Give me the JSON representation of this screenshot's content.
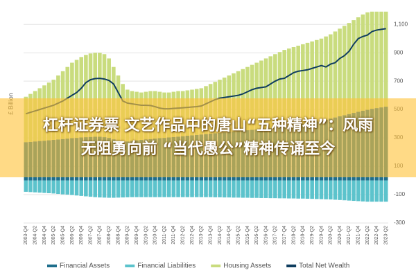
{
  "chart_data": {
    "type": "stacked_bar_line",
    "y_label": "£ Billion",
    "categories": [
      "2003-Q4",
      null,
      "2004-Q2",
      null,
      "2004-Q4",
      null,
      "2005-Q2",
      null,
      "2005-Q4",
      null,
      "2006-Q2",
      null,
      "2006-Q4",
      null,
      "2007-Q2",
      null,
      "2007-Q4",
      null,
      "2008-Q2",
      null,
      "2008-Q4",
      null,
      "2009-Q2",
      null,
      "2009-Q4",
      null,
      "2010-Q2",
      null,
      "2010-Q4",
      null,
      "2011-Q2",
      null,
      "2011-Q4",
      null,
      "2012-Q2",
      null,
      "2012-Q4",
      null,
      "2013-Q2",
      null,
      "2013-Q4",
      null,
      "2014-Q2",
      null,
      "2014-Q4",
      null,
      "2015-Q2",
      null,
      "2015-Q4",
      null,
      "2016-Q2",
      null,
      "2016-Q4",
      null,
      "2017-Q2",
      null,
      "2017-Q4",
      null,
      "2018-Q2",
      null,
      "2018-Q4",
      null,
      "2019-Q2",
      null,
      "2019-Q4",
      null,
      "2020-Q2",
      null,
      "2020-Q4",
      null,
      "2021-Q2",
      null,
      "2021-Q4",
      null,
      "2022-Q2",
      null,
      "2022-Q4",
      null,
      "2023-Q2"
    ],
    "series": [
      {
        "name": "Financial Assets",
        "color": "#1e6e8c",
        "kind": "bar",
        "values": [
          270,
          272,
          275,
          278,
          280,
          283,
          286,
          289,
          292,
          295,
          298,
          300,
          303,
          305,
          307,
          308,
          308,
          305,
          300,
          290,
          280,
          275,
          275,
          280,
          283,
          286,
          289,
          292,
          295,
          298,
          300,
          303,
          306,
          309,
          312,
          315,
          318,
          321,
          324,
          327,
          330,
          333,
          336,
          339,
          342,
          345,
          348,
          351,
          354,
          357,
          360,
          363,
          366,
          370,
          374,
          378,
          382,
          386,
          390,
          395,
          400,
          405,
          410,
          415,
          420,
          428,
          436,
          444,
          452,
          460,
          468,
          476,
          484,
          492,
          498,
          505,
          510,
          515,
          520
        ]
      },
      {
        "name": "Financial Liabilities",
        "color": "#5cc3cc",
        "kind": "bar",
        "values": [
          -80,
          -82,
          -84,
          -86,
          -88,
          -90,
          -92,
          -95,
          -98,
          -100,
          -103,
          -106,
          -109,
          -112,
          -115,
          -118,
          -120,
          -121,
          -122,
          -122,
          -121,
          -120,
          -119,
          -118,
          -118,
          -118,
          -118,
          -118,
          -118,
          -118,
          -118,
          -118,
          -118,
          -118,
          -118,
          -118,
          -118,
          -118,
          -118,
          -118,
          -118,
          -119,
          -119,
          -120,
          -120,
          -121,
          -121,
          -122,
          -122,
          -123,
          -123,
          -124,
          -124,
          -125,
          -125,
          -126,
          -126,
          -127,
          -127,
          -128,
          -128,
          -129,
          -130,
          -131,
          -132,
          -133,
          -134,
          -136,
          -138,
          -140,
          -142,
          -144,
          -146,
          -148,
          -150,
          -150,
          -150,
          -150,
          -150
        ]
      },
      {
        "name": "Housing Assets",
        "color": "#c9dc7e",
        "kind": "bar",
        "values": [
          320,
          338,
          355,
          372,
          390,
          407,
          424,
          451,
          478,
          505,
          532,
          550,
          567,
          580,
          588,
          592,
          592,
          585,
          560,
          510,
          460,
          405,
          365,
          350,
          342,
          334,
          336,
          338,
          335,
          327,
          320,
          317,
          319,
          321,
          318,
          320,
          322,
          324,
          326,
          338,
          350,
          362,
          374,
          386,
          398,
          410,
          422,
          434,
          446,
          458,
          470,
          482,
          494,
          505,
          516,
          527,
          538,
          544,
          550,
          555,
          560,
          565,
          570,
          575,
          580,
          587,
          594,
          606,
          618,
          630,
          642,
          654,
          666,
          678,
          687,
          685,
          680,
          675,
          670
        ]
      },
      {
        "name": "Total Net Wealth",
        "color": "#0f3d5f",
        "kind": "line",
        "values": [
          470,
          480,
          490,
          500,
          510,
          520,
          530,
          545,
          560,
          580,
          600,
          620,
          650,
          690,
          710,
          718,
          720,
          715,
          705,
          680,
          620,
          560,
          545,
          540,
          535,
          530,
          530,
          528,
          520,
          510,
          505,
          505,
          508,
          510,
          512,
          515,
          518,
          520,
          525,
          540,
          555,
          570,
          580,
          585,
          590,
          595,
          600,
          610,
          625,
          640,
          650,
          655,
          660,
          680,
          700,
          715,
          720,
          740,
          760,
          770,
          775,
          780,
          790,
          800,
          810,
          800,
          820,
          830,
          860,
          880,
          910,
          960,
          1000,
          1015,
          1025,
          1050,
          1060,
          1065,
          1070
        ]
      }
    ],
    "ylim": [
      -300,
      1150
    ],
    "yticks": [
      -300,
      -100,
      100,
      300,
      500,
      700,
      900,
      {
        "value": 1100,
        "label": "1,100"
      }
    ],
    "grid": true,
    "legend": "bottom"
  },
  "banner": {
    "lines": [
      "杠杆证券票 文艺作品中的唐山“五种精神”：风雨",
      "无阻勇向前 “当代愚公”精神传诵至今"
    ]
  }
}
